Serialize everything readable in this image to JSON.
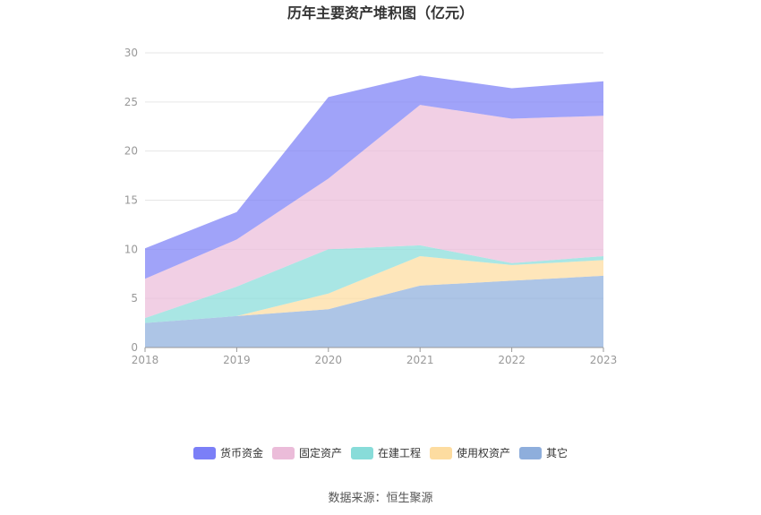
{
  "chart_data": {
    "type": "area",
    "stacked": true,
    "title": "历年主要资产堆积图（亿元）",
    "x": [
      "2018",
      "2019",
      "2020",
      "2021",
      "2022",
      "2023"
    ],
    "ylim": [
      0,
      30
    ],
    "yticks": [
      "0",
      "5",
      "10",
      "15",
      "20",
      "25",
      "30"
    ],
    "grid": true,
    "legend_position": "bottom",
    "series": [
      {
        "name": "其它",
        "color": "#8eaedc",
        "values": [
          2.5,
          3.2,
          3.9,
          6.3,
          6.8,
          7.3
        ]
      },
      {
        "name": "使用权资产",
        "color": "#fddca0",
        "values": [
          0.0,
          0.0,
          1.6,
          3.0,
          1.6,
          1.6
        ]
      },
      {
        "name": "在建工程",
        "color": "#88dcd9",
        "values": [
          0.5,
          3.0,
          4.5,
          1.1,
          0.2,
          0.4
        ]
      },
      {
        "name": "固定资产",
        "color": "#ebbcd9",
        "values": [
          4.0,
          4.8,
          7.2,
          14.3,
          14.7,
          14.3
        ]
      },
      {
        "name": "货币资金",
        "color": "#7b7ff7",
        "values": [
          3.1,
          2.8,
          8.3,
          3.0,
          3.1,
          3.5
        ]
      }
    ],
    "legend_order": [
      "货币资金",
      "固定资产",
      "在建工程",
      "使用权资产",
      "其它"
    ]
  },
  "footer": {
    "source": "数据来源：恒生聚源"
  }
}
